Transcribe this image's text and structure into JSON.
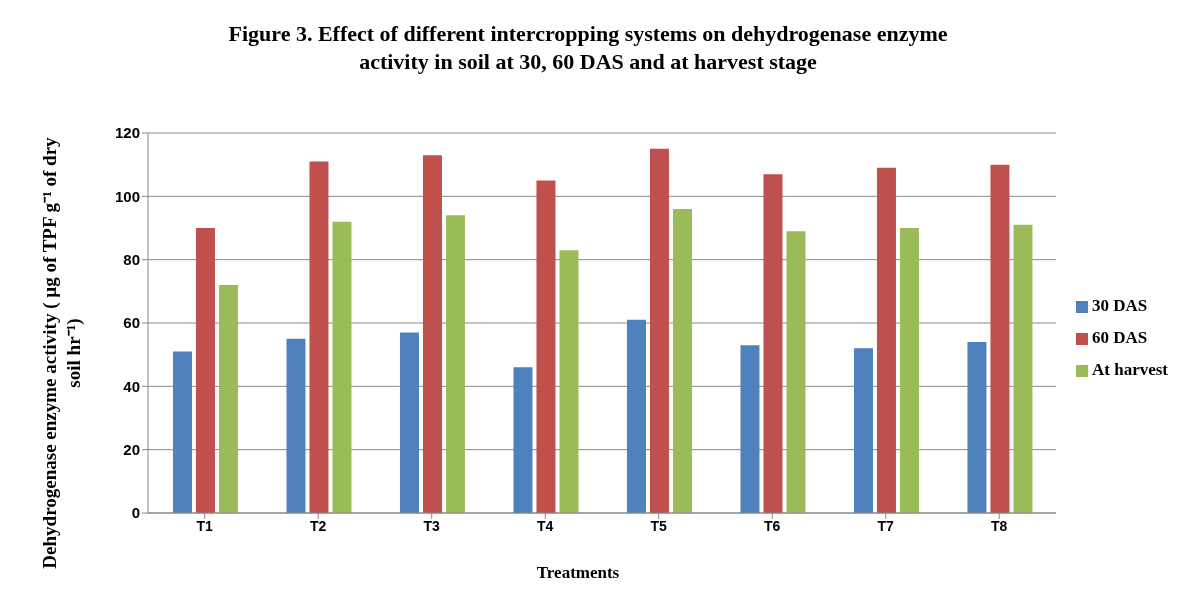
{
  "chart_data": {
    "type": "bar",
    "title": "Figure 3. Effect of different intercropping systems on dehydrogenase enzyme activity in soil at 30, 60 DAS and at harvest stage",
    "xlabel": "Treatments",
    "ylabel": "Dehydrogenase enzyme activity ( µg of TPF g⁻¹ of dry soil hr⁻¹)",
    "categories": [
      "T1",
      "T2",
      "T3",
      "T4",
      "T5",
      "T6",
      "T7",
      "T8"
    ],
    "series": [
      {
        "name": "30 DAS",
        "color": "#4f81bd",
        "values": [
          51,
          55,
          57,
          46,
          61,
          53,
          52,
          54
        ]
      },
      {
        "name": "60 DAS",
        "color": "#c0504d",
        "values": [
          90,
          111,
          113,
          105,
          115,
          107,
          109,
          110
        ]
      },
      {
        "name": "At harvest",
        "color": "#9bbb59",
        "values": [
          72,
          92,
          94,
          83,
          96,
          89,
          90,
          91
        ]
      }
    ],
    "ylim": [
      0,
      120
    ],
    "yticks": [
      0,
      20,
      40,
      60,
      80,
      100,
      120
    ],
    "grid": "y",
    "legend": "right"
  }
}
